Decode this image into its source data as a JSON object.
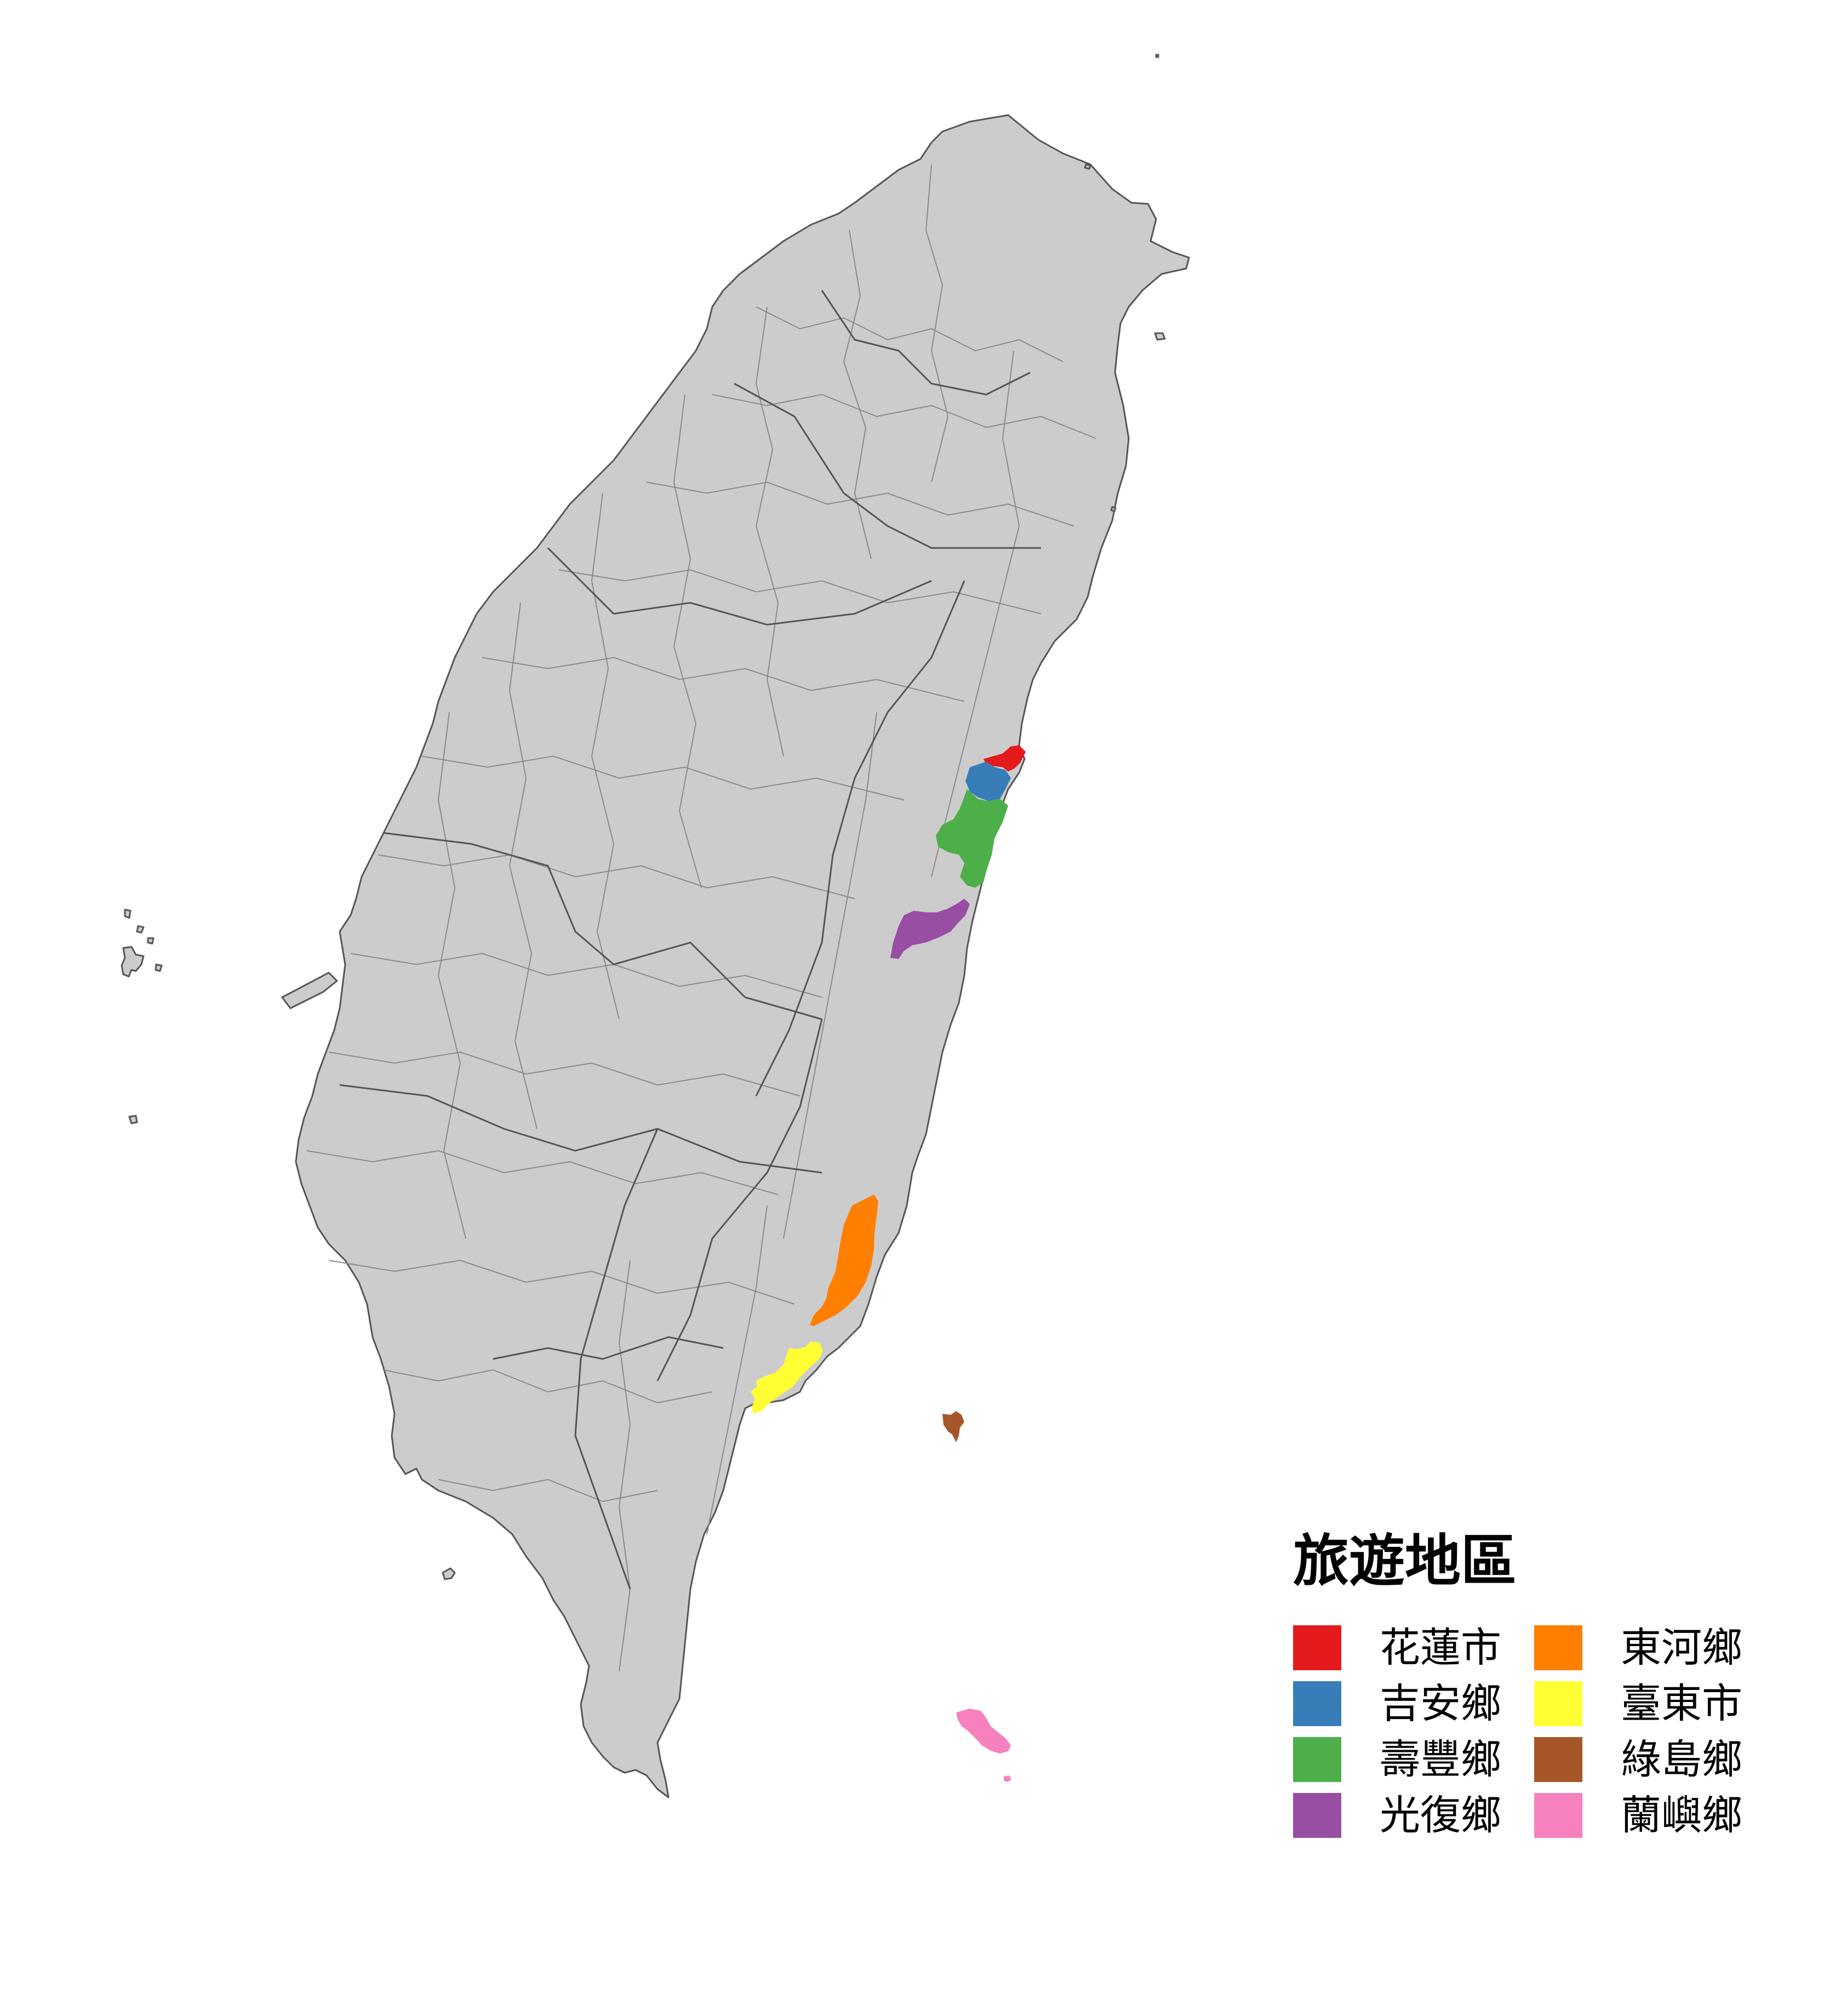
{
  "legend": {
    "title": "旅遊地區",
    "items": [
      {
        "label": "花蓮市",
        "color": "#e41a1c"
      },
      {
        "label": "吉安鄉",
        "color": "#377eb8"
      },
      {
        "label": "壽豐鄉",
        "color": "#4daf4a"
      },
      {
        "label": "光復鄉",
        "color": "#984ea3"
      },
      {
        "label": "東河鄉",
        "color": "#ff7f00"
      },
      {
        "label": "臺東市",
        "color": "#ffff33"
      },
      {
        "label": "綠島鄉",
        "color": "#a65628"
      },
      {
        "label": "蘭嶼鄉",
        "color": "#f781bf"
      }
    ]
  },
  "map": {
    "land_color": "#cccccc",
    "border_color": "#555555"
  }
}
